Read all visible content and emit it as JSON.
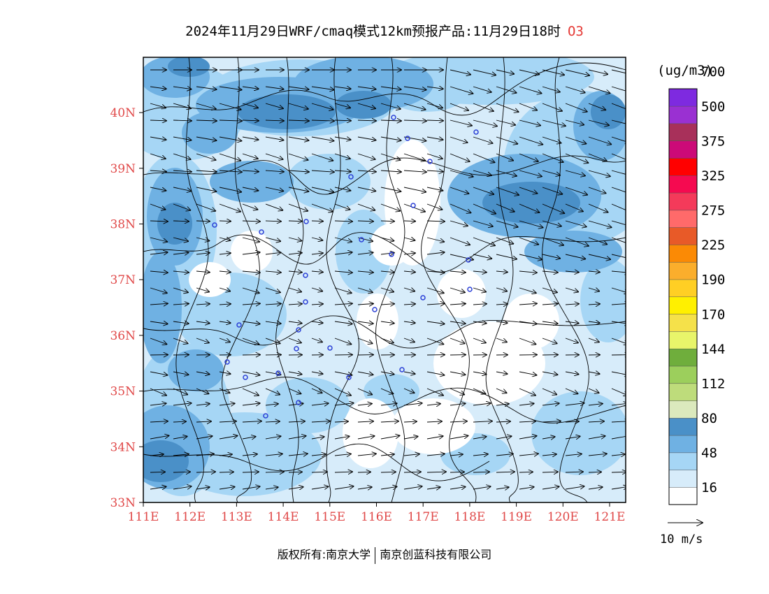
{
  "title": {
    "main": "2024年11月29日WRF/cmaq模式12km预报产品:11月29日18时",
    "species": "O3"
  },
  "map": {
    "lon_range": [
      111,
      121.4
    ],
    "lat_range": [
      33,
      41
    ],
    "lon_ticks": [
      "111E",
      "112E",
      "113E",
      "114E",
      "115E",
      "116E",
      "117E",
      "118E",
      "119E",
      "120E",
      "121E"
    ],
    "lat_ticks": [
      "33N",
      "34N",
      "35N",
      "36N",
      "37N",
      "38N",
      "39N",
      "40N"
    ],
    "colors": {
      "c16": "#d7ecfa",
      "c48": "#a6d6f5",
      "c64": "#6fb1e3",
      "c80": "#4a90c8",
      "border": "#000000"
    },
    "wind_arrows": "arrow-icon",
    "city_markers": "circle-icon"
  },
  "legend": {
    "unit": "(ug/m3)",
    "labels": [
      "16",
      "48",
      "80",
      "112",
      "144",
      "170",
      "190",
      "225",
      "275",
      "325",
      "375",
      "500",
      "700"
    ],
    "colors": [
      "#ffffff",
      "#d7ecfa",
      "#a6d6f5",
      "#6fb1e3",
      "#4a90c8",
      "#dbe9bd",
      "#bedc7b",
      "#9ccf5c",
      "#6fae3c",
      "#e8f56a",
      "#f5e14a",
      "#fff000",
      "#ffcf24",
      "#fbae2c",
      "#fb8a05",
      "#e85a28",
      "#ff6a6a",
      "#f43a5a",
      "#f50a50",
      "#ff0000",
      "#cc0a78",
      "#a8305a",
      "#9a30d2",
      "#7e2ae0"
    ],
    "vector_label": "10 m/s"
  },
  "copyright": {
    "prefix": "版权所有:南京大学",
    "suffix": "南京创蓝科技有限公司"
  }
}
